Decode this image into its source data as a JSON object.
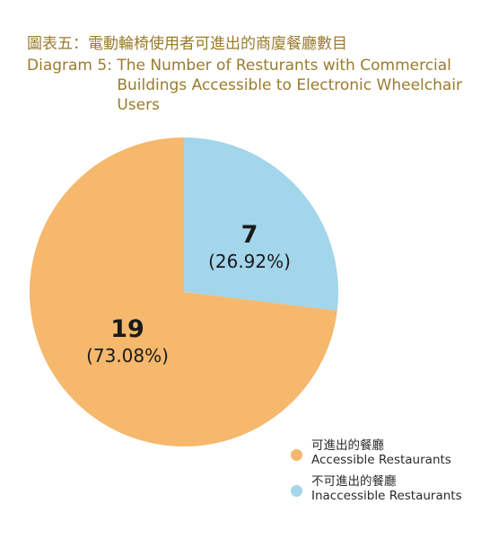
{
  "chart_data": {
    "type": "pie",
    "title_zh": "圖表五：電動輪椅使用者可進出的商廈餐廳數目",
    "title_en_prefix": "Diagram 5:",
    "title_en_rest": "The Number of Resturants with Commercial Buildings Accessible to Electronic Wheelchair Users",
    "slices": [
      {
        "label_zh": "不可進出的餐廳",
        "label_en": "Inaccessible Restaurants",
        "value": 7,
        "value_label": "7",
        "percent_label": "(26.92%)",
        "color": "#a3d5eb"
      },
      {
        "label_zh": "可進出的餐廳",
        "label_en": "Accessible Restaurants",
        "value": 19,
        "value_label": "19",
        "percent_label": "(73.08%)",
        "color": "#f5b86c"
      }
    ],
    "legend": [
      {
        "label_zh": "可進出的餐廳",
        "label_en": "Accessible Restaurants",
        "color": "#f5b86c"
      },
      {
        "label_zh": "不可進出的餐廳",
        "label_en": "Inaccessible Restaurants",
        "color": "#a3d5eb"
      }
    ],
    "legend_position": "bottom-right"
  }
}
